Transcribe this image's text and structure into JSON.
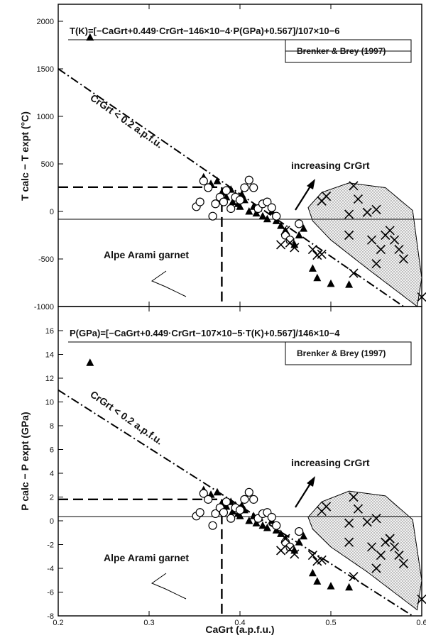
{
  "chart_data": [
    {
      "type": "scatter",
      "ylabel": "T calc − T expt (°C)",
      "xlim": [
        0.2,
        0.6
      ],
      "ylim": [
        -1000,
        2200
      ],
      "yticks": [
        2000,
        1500,
        1000,
        500,
        0,
        -500,
        -1000
      ],
      "equation": "T(K)=[−CaGrt+0.449·CrGrt−146×10−4·P(GPa)+0.567]/107×10−6",
      "reference": "Brenker & Brey (1997)",
      "labels": {
        "cr_limit": "CrGrt < 0.2 a.p.f.u.",
        "increasing": "increasing CrGrt",
        "alpe": "Alpe Arami garnet"
      },
      "reference_lines": {
        "alpe_ca": 0.38,
        "alpe_value": 255,
        "trend": [
          [
            0.2,
            1500
          ],
          [
            0.58,
            -1000
          ]
        ]
      },
      "series": [
        {
          "marker": "triangle",
          "points": [
            [
              0.235,
              1830
            ],
            [
              0.36,
              360
            ],
            [
              0.368,
              290
            ],
            [
              0.375,
              320
            ],
            [
              0.38,
              200
            ],
            [
              0.385,
              150
            ],
            [
              0.39,
              230
            ],
            [
              0.392,
              100
            ],
            [
              0.395,
              170
            ],
            [
              0.398,
              80
            ],
            [
              0.4,
              50
            ],
            [
              0.402,
              180
            ],
            [
              0.405,
              120
            ],
            [
              0.41,
              0
            ],
            [
              0.415,
              50
            ],
            [
              0.418,
              -20
            ],
            [
              0.42,
              30
            ],
            [
              0.425,
              -50
            ],
            [
              0.43,
              -80
            ],
            [
              0.435,
              0
            ],
            [
              0.44,
              -100
            ],
            [
              0.445,
              -150
            ],
            [
              0.45,
              -200
            ],
            [
              0.455,
              -300
            ],
            [
              0.46,
              -350
            ],
            [
              0.465,
              -250
            ],
            [
              0.47,
              -180
            ],
            [
              0.48,
              -600
            ],
            [
              0.485,
              -700
            ],
            [
              0.5,
              -760
            ],
            [
              0.52,
              -770
            ]
          ]
        },
        {
          "marker": "circle",
          "points": [
            [
              0.352,
              50
            ],
            [
              0.356,
              100
            ],
            [
              0.36,
              320
            ],
            [
              0.365,
              250
            ],
            [
              0.37,
              -50
            ],
            [
              0.373,
              80
            ],
            [
              0.378,
              150
            ],
            [
              0.382,
              100
            ],
            [
              0.385,
              220
            ],
            [
              0.39,
              30
            ],
            [
              0.395,
              150
            ],
            [
              0.4,
              120
            ],
            [
              0.405,
              250
            ],
            [
              0.41,
              330
            ],
            [
              0.415,
              250
            ],
            [
              0.42,
              30
            ],
            [
              0.425,
              80
            ],
            [
              0.43,
              100
            ],
            [
              0.435,
              40
            ],
            [
              0.44,
              -50
            ],
            [
              0.45,
              -250
            ],
            [
              0.455,
              -300
            ],
            [
              0.465,
              -130
            ]
          ]
        },
        {
          "marker": "x",
          "points": [
            [
              0.445,
              -350
            ],
            [
              0.45,
              -200
            ],
            [
              0.455,
              -330
            ],
            [
              0.46,
              -380
            ],
            [
              0.48,
              -400
            ],
            [
              0.485,
              -460
            ],
            [
              0.49,
              -450
            ],
            [
              0.49,
              110
            ],
            [
              0.495,
              160
            ],
            [
              0.52,
              -30
            ],
            [
              0.52,
              -250
            ],
            [
              0.525,
              270
            ],
            [
              0.53,
              130
            ],
            [
              0.54,
              -10
            ],
            [
              0.545,
              -300
            ],
            [
              0.55,
              -550
            ],
            [
              0.555,
              -400
            ],
            [
              0.56,
              -250
            ],
            [
              0.565,
              -200
            ],
            [
              0.57,
              -300
            ],
            [
              0.575,
              -400
            ],
            [
              0.58,
              -500
            ],
            [
              0.55,
              20
            ],
            [
              0.525,
              -650
            ],
            [
              0.6,
              -900
            ]
          ]
        }
      ]
    },
    {
      "type": "scatter",
      "ylabel": "P calc − P expt (GPa)",
      "xlabel": "CaGrt (a.p.f.u.)",
      "xlim": [
        0.2,
        0.6
      ],
      "ylim": [
        -8,
        17
      ],
      "xticks": [
        0.2,
        0.3,
        0.4,
        0.5,
        0.6
      ],
      "yticks": [
        16,
        14,
        12,
        10,
        8,
        6,
        4,
        2,
        0,
        -2,
        -4,
        -6,
        -8
      ],
      "equation": "P(GPa)=[−CaGrt+0.449·CrGrt−107×10−5·T(K)+0.567]/146×10−4",
      "reference": "Brenker & Brey (1997)",
      "labels": {
        "cr_limit": "CrGrt < 0.2 a.p.f.u.",
        "increasing": "increasing CrGrt",
        "alpe": "Alpe Arami garnet"
      },
      "reference_lines": {
        "alpe_ca": 0.38,
        "alpe_value": 1.8,
        "trend": [
          [
            0.2,
            11
          ],
          [
            0.59,
            -8
          ]
        ]
      },
      "series": [
        {
          "marker": "triangle",
          "points": [
            [
              0.235,
              13.3
            ],
            [
              0.36,
              2.6
            ],
            [
              0.368,
              2.2
            ],
            [
              0.375,
              2.4
            ],
            [
              0.38,
              1.5
            ],
            [
              0.385,
              1.2
            ],
            [
              0.39,
              1.6
            ],
            [
              0.392,
              0.8
            ],
            [
              0.395,
              1.3
            ],
            [
              0.398,
              0.6
            ],
            [
              0.4,
              0.4
            ],
            [
              0.402,
              1.3
            ],
            [
              0.405,
              0.9
            ],
            [
              0.41,
              0.0
            ],
            [
              0.415,
              0.4
            ],
            [
              0.418,
              -0.2
            ],
            [
              0.42,
              0.2
            ],
            [
              0.425,
              -0.4
            ],
            [
              0.43,
              -0.6
            ],
            [
              0.435,
              0.0
            ],
            [
              0.44,
              -0.8
            ],
            [
              0.445,
              -1.1
            ],
            [
              0.45,
              -1.5
            ],
            [
              0.455,
              -2.2
            ],
            [
              0.46,
              -2.5
            ],
            [
              0.465,
              -1.8
            ],
            [
              0.47,
              -1.3
            ],
            [
              0.48,
              -4.4
            ],
            [
              0.485,
              -5.1
            ],
            [
              0.5,
              -5.5
            ],
            [
              0.52,
              -5.6
            ]
          ]
        },
        {
          "marker": "circle",
          "points": [
            [
              0.352,
              0.4
            ],
            [
              0.356,
              0.7
            ],
            [
              0.36,
              2.3
            ],
            [
              0.365,
              1.8
            ],
            [
              0.37,
              -0.4
            ],
            [
              0.373,
              0.6
            ],
            [
              0.378,
              1.1
            ],
            [
              0.382,
              0.7
            ],
            [
              0.385,
              1.6
            ],
            [
              0.39,
              0.2
            ],
            [
              0.395,
              1.1
            ],
            [
              0.4,
              0.9
            ],
            [
              0.405,
              1.8
            ],
            [
              0.41,
              2.4
            ],
            [
              0.415,
              1.8
            ],
            [
              0.42,
              0.2
            ],
            [
              0.425,
              0.6
            ],
            [
              0.43,
              0.7
            ],
            [
              0.435,
              0.3
            ],
            [
              0.44,
              -0.4
            ],
            [
              0.45,
              -1.8
            ],
            [
              0.455,
              -2.2
            ],
            [
              0.465,
              -0.9
            ]
          ]
        },
        {
          "marker": "x",
          "points": [
            [
              0.445,
              -2.5
            ],
            [
              0.45,
              -1.5
            ],
            [
              0.455,
              -2.4
            ],
            [
              0.46,
              -2.8
            ],
            [
              0.48,
              -2.9
            ],
            [
              0.485,
              -3.4
            ],
            [
              0.49,
              -3.3
            ],
            [
              0.49,
              0.8
            ],
            [
              0.495,
              1.2
            ],
            [
              0.52,
              -0.2
            ],
            [
              0.52,
              -1.8
            ],
            [
              0.525,
              2.0
            ],
            [
              0.53,
              1.0
            ],
            [
              0.54,
              -0.1
            ],
            [
              0.545,
              -2.2
            ],
            [
              0.55,
              -4.0
            ],
            [
              0.555,
              -2.9
            ],
            [
              0.56,
              -1.8
            ],
            [
              0.565,
              -1.5
            ],
            [
              0.57,
              -2.2
            ],
            [
              0.575,
              -2.9
            ],
            [
              0.58,
              -3.6
            ],
            [
              0.55,
              0.2
            ],
            [
              0.525,
              -4.7
            ],
            [
              0.6,
              -6.6
            ]
          ]
        }
      ]
    }
  ]
}
